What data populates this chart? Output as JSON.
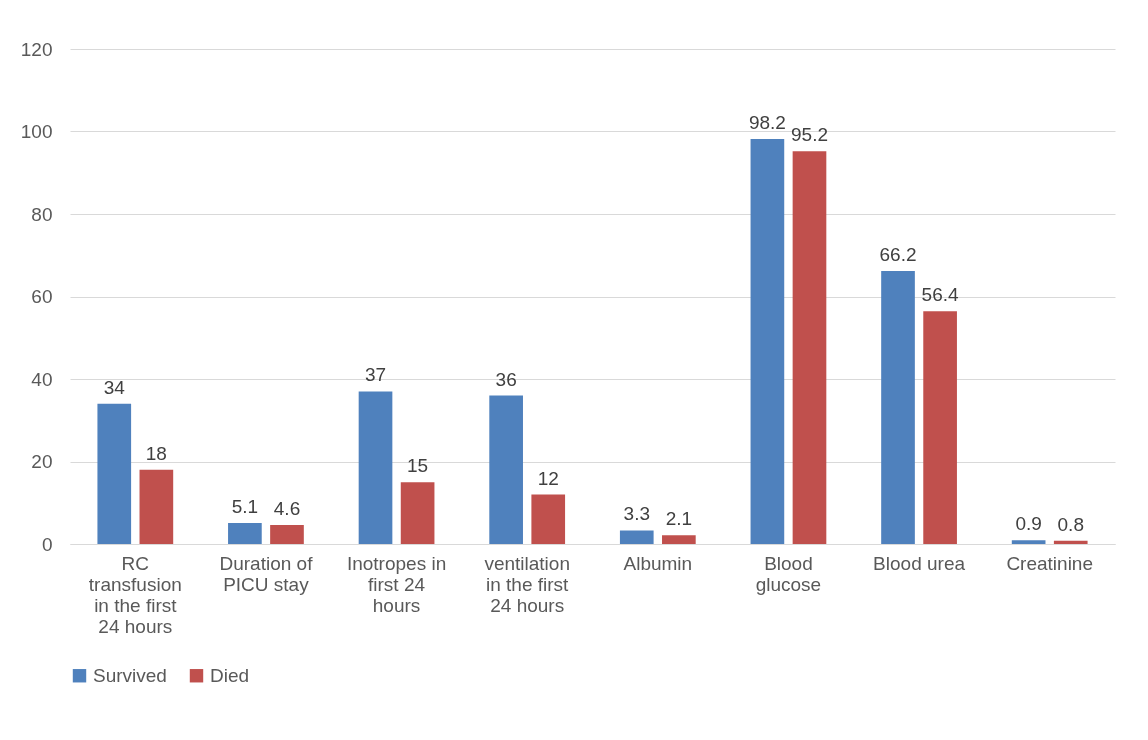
{
  "chart_data": {
    "type": "bar",
    "categories": [
      "RC transfusion in the first 24 hours",
      "Duration of PICU stay",
      "Inotropes in first 24 hours",
      "ventilation in the first 24 hours",
      "Albumin",
      "Blood glucose",
      "Blood urea",
      "Creatinine"
    ],
    "series": [
      {
        "name": "Survived",
        "color": "#4f81bd",
        "values": [
          34,
          5.1,
          37,
          36,
          3.3,
          98.2,
          66.2,
          0.9
        ]
      },
      {
        "name": "Died",
        "color": "#c0504d",
        "values": [
          18,
          4.6,
          15,
          12,
          2.1,
          95.2,
          56.4,
          0.8
        ]
      }
    ],
    "ylim": [
      0,
      120
    ],
    "yticks": [
      0,
      20,
      40,
      60,
      80,
      100,
      120
    ],
    "grid": "y",
    "legend": "bottom",
    "data_labels": true
  }
}
